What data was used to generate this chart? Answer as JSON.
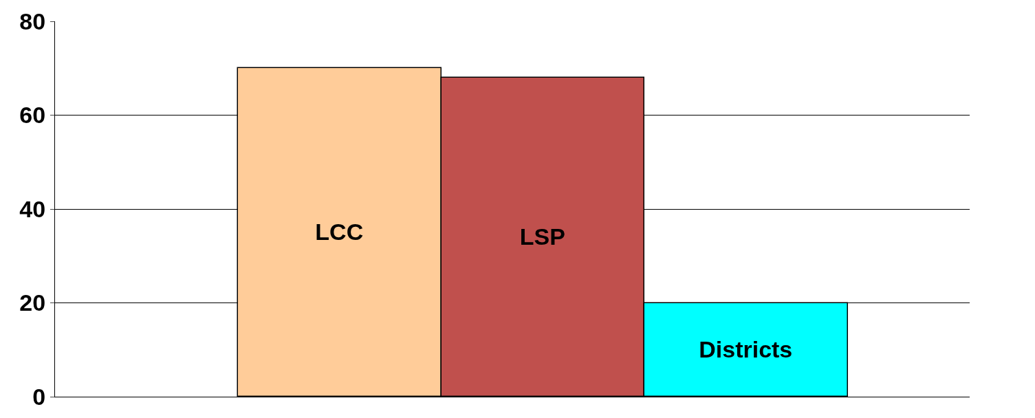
{
  "chart_data": {
    "type": "bar",
    "categories": [
      "LCC",
      "LSP",
      "Districts"
    ],
    "values": [
      70,
      68,
      20
    ],
    "colors": [
      "#ffcc99",
      "#c0504d",
      "#00ffff"
    ],
    "ylim": [
      0,
      80
    ],
    "yticks": [
      0,
      20,
      40,
      60,
      80
    ],
    "grid": "y",
    "tick_labels": "y"
  }
}
